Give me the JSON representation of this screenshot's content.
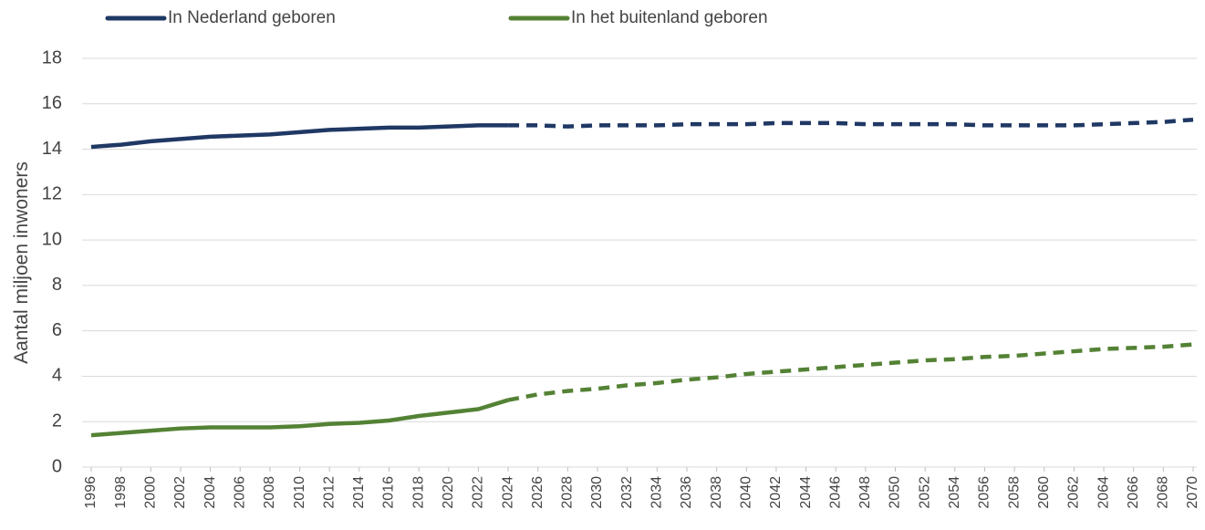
{
  "chart_data": {
    "type": "line",
    "y_label": "Aantal miljoen inwoners",
    "x": [
      1996,
      1998,
      2000,
      2002,
      2004,
      2006,
      2008,
      2010,
      2012,
      2014,
      2016,
      2018,
      2020,
      2022,
      2024,
      2026,
      2028,
      2030,
      2032,
      2034,
      2036,
      2038,
      2040,
      2042,
      2044,
      2046,
      2048,
      2050,
      2052,
      2054,
      2056,
      2058,
      2060,
      2062,
      2064,
      2066,
      2068,
      2070
    ],
    "series": [
      {
        "name": "In Nederland geboren",
        "color": "#1f3864",
        "values": [
          14.1,
          14.2,
          14.35,
          14.45,
          14.55,
          14.6,
          14.65,
          14.75,
          14.85,
          14.9,
          14.95,
          14.95,
          15.0,
          15.05,
          15.05,
          15.05,
          15.0,
          15.05,
          15.05,
          15.05,
          15.1,
          15.1,
          15.1,
          15.15,
          15.15,
          15.15,
          15.1,
          15.1,
          15.1,
          15.1,
          15.05,
          15.05,
          15.05,
          15.05,
          15.1,
          15.15,
          15.2,
          15.3
        ]
      },
      {
        "name": "In het buitenland geboren",
        "color": "#548235",
        "values": [
          1.4,
          1.5,
          1.6,
          1.7,
          1.75,
          1.75,
          1.75,
          1.8,
          1.9,
          1.95,
          2.05,
          2.25,
          2.4,
          2.55,
          2.95,
          3.2,
          3.35,
          3.45,
          3.6,
          3.7,
          3.85,
          3.95,
          4.1,
          4.2,
          4.3,
          4.4,
          4.5,
          4.6,
          4.7,
          4.75,
          4.85,
          4.9,
          5.0,
          5.1,
          5.2,
          5.25,
          5.3,
          5.4
        ]
      }
    ],
    "dashed_from": 2024,
    "xlim": [
      1996,
      2070
    ],
    "xticks": [
      1996,
      1998,
      2000,
      2002,
      2004,
      2006,
      2008,
      2010,
      2012,
      2014,
      2016,
      2018,
      2020,
      2022,
      2024,
      2026,
      2028,
      2030,
      2032,
      2034,
      2036,
      2038,
      2040,
      2042,
      2044,
      2046,
      2048,
      2050,
      2052,
      2054,
      2056,
      2058,
      2060,
      2062,
      2064,
      2066,
      2068,
      2070
    ],
    "ylim": [
      0,
      18
    ],
    "yticks": [
      0,
      2,
      4,
      6,
      8,
      10,
      12,
      14,
      16,
      18
    ],
    "grid": true,
    "legend": "top"
  }
}
